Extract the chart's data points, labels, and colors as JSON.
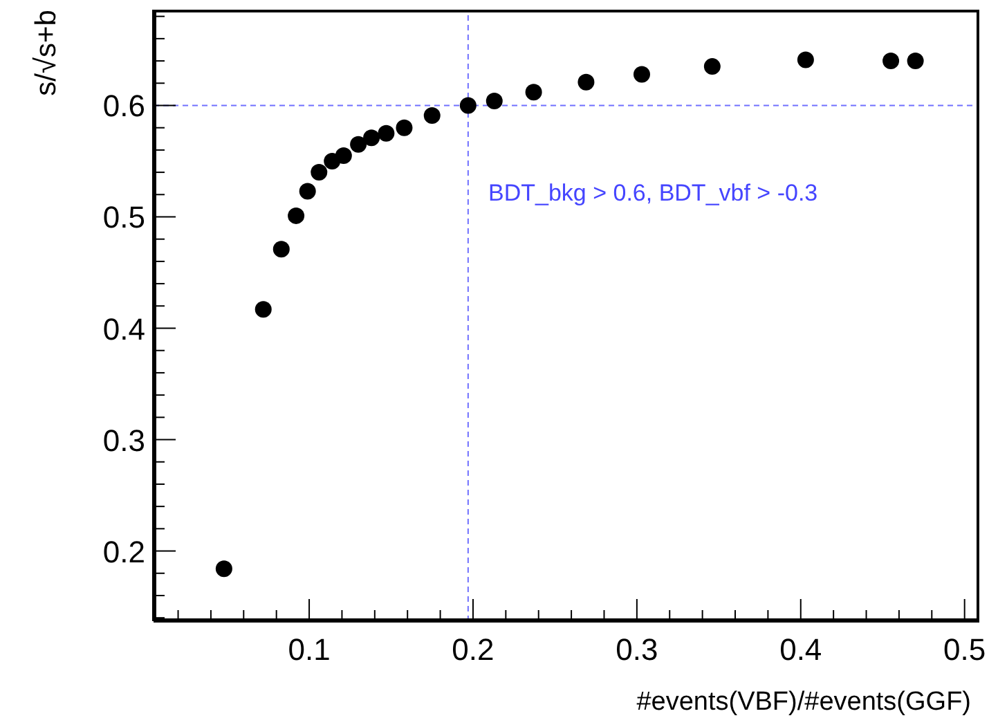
{
  "chart_data": {
    "type": "scatter",
    "xlabel": "#events(VBF)/#events(GGF)",
    "ylabel": "s/√s+b",
    "marker": "circle",
    "grid": false,
    "legend": false,
    "x": [
      0.048,
      0.072,
      0.083,
      0.092,
      0.099,
      0.106,
      0.114,
      0.121,
      0.13,
      0.138,
      0.147,
      0.158,
      0.175,
      0.197,
      0.213,
      0.237,
      0.269,
      0.303,
      0.346,
      0.403,
      0.455,
      0.47
    ],
    "series": [
      {
        "color": "#000000",
        "values": [
          0.184,
          0.417,
          0.471,
          0.501,
          0.523,
          0.54,
          0.55,
          0.555,
          0.565,
          0.571,
          0.575,
          0.58,
          0.591,
          0.6,
          0.604,
          0.612,
          0.621,
          0.628,
          0.635,
          0.641,
          0.64,
          0.64
        ]
      }
    ],
    "xlim": [
      0.005,
      0.509
    ],
    "ylim": [
      0.137,
      0.686
    ],
    "xticks": [
      {
        "value": 0.02,
        "label": null
      },
      {
        "value": 0.04,
        "label": null
      },
      {
        "value": 0.06,
        "label": null
      },
      {
        "value": 0.08,
        "label": null
      },
      0.1,
      {
        "value": 0.12,
        "label": null
      },
      {
        "value": 0.14,
        "label": null
      },
      {
        "value": 0.16,
        "label": null
      },
      {
        "value": 0.18,
        "label": null
      },
      0.2,
      {
        "value": 0.22,
        "label": null
      },
      {
        "value": 0.24,
        "label": null
      },
      {
        "value": 0.26,
        "label": null
      },
      {
        "value": 0.28,
        "label": null
      },
      0.3,
      {
        "value": 0.32,
        "label": null
      },
      {
        "value": 0.34,
        "label": null
      },
      {
        "value": 0.36,
        "label": null
      },
      {
        "value": 0.38,
        "label": null
      },
      0.4,
      {
        "value": 0.42,
        "label": null
      },
      {
        "value": 0.44,
        "label": null
      },
      {
        "value": 0.46,
        "label": null
      },
      {
        "value": 0.48,
        "label": null
      },
      0.5
    ],
    "yticks": [
      {
        "value": 0.14,
        "label": null
      },
      {
        "value": 0.16,
        "label": null
      },
      {
        "value": 0.18,
        "label": null
      },
      0.2,
      {
        "value": 0.22,
        "label": null
      },
      {
        "value": 0.24,
        "label": null
      },
      {
        "value": 0.26,
        "label": null
      },
      {
        "value": 0.28,
        "label": null
      },
      0.3,
      {
        "value": 0.32,
        "label": null
      },
      {
        "value": 0.34,
        "label": null
      },
      {
        "value": 0.36,
        "label": null
      },
      {
        "value": 0.38,
        "label": null
      },
      0.4,
      {
        "value": 0.42,
        "label": null
      },
      {
        "value": 0.44,
        "label": null
      },
      {
        "value": 0.46,
        "label": null
      },
      {
        "value": 0.48,
        "label": null
      },
      0.5,
      {
        "value": 0.52,
        "label": null
      },
      {
        "value": 0.54,
        "label": null
      },
      {
        "value": 0.56,
        "label": null
      },
      {
        "value": 0.58,
        "label": null
      },
      0.6,
      {
        "value": 0.62,
        "label": null
      },
      {
        "value": 0.64,
        "label": null
      },
      {
        "value": 0.66,
        "label": null
      },
      {
        "value": 0.68,
        "label": null
      }
    ],
    "ref_lines": [
      {
        "axis": "y",
        "value": 0.6,
        "color": "#7070ff",
        "line_style": "dashed"
      },
      {
        "axis": "x",
        "value": 0.197,
        "color": "#7070ff",
        "line_style": "dashed"
      }
    ],
    "annotations": [
      "BDT_bkg > 0.6, BDT_vbf > -0.3"
    ]
  }
}
